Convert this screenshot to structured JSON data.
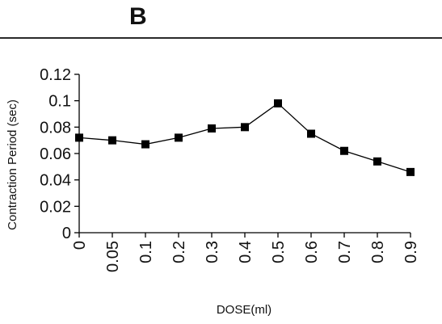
{
  "panel": {
    "label": "B"
  },
  "chart_data": {
    "type": "line",
    "xlabel": "DOSE(ml)",
    "ylabel": "Contraction Period (sec)",
    "categories": [
      "0",
      "0.05",
      "0.1",
      "0.2",
      "0.3",
      "0.4",
      "0.5",
      "0.6",
      "0.7",
      "0.8",
      "0.9"
    ],
    "ylim": [
      0,
      0.12
    ],
    "yticks": [
      "0",
      "0.02",
      "0.04",
      "0.06",
      "0.08",
      "0.1",
      "0.12"
    ],
    "series": [
      {
        "values": [
          0.072,
          0.07,
          0.067,
          0.072,
          0.079,
          0.08,
          0.098,
          0.075,
          0.062,
          0.054,
          0.046
        ]
      }
    ],
    "marker": "square",
    "line_color": "#000000",
    "grid": false
  }
}
